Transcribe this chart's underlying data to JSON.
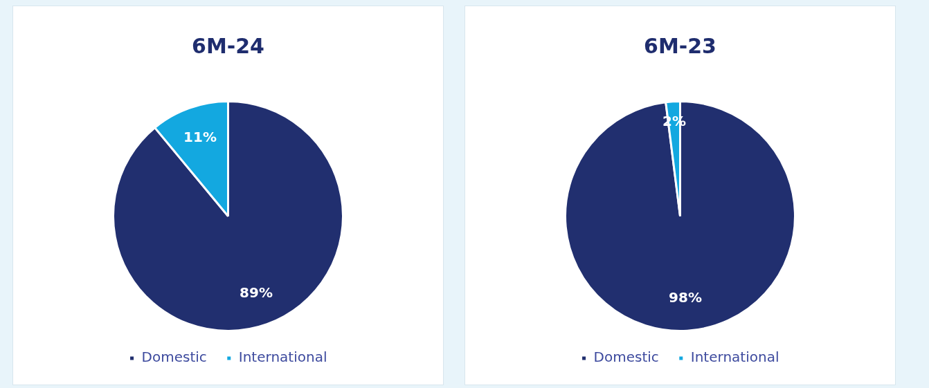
{
  "chart_data": [
    {
      "type": "pie",
      "title": "6M-24",
      "categories": [
        "Domestic",
        "International"
      ],
      "values": [
        89,
        11
      ],
      "colors": [
        "#212f6f",
        "#13a8e0"
      ],
      "value_labels": [
        "89%",
        "11%"
      ],
      "legend": "bottom"
    },
    {
      "type": "pie",
      "title": "6M-23",
      "categories": [
        "Domestic",
        "International"
      ],
      "values": [
        98,
        2
      ],
      "colors": [
        "#212f6f",
        "#13a8e0"
      ],
      "value_labels": [
        "98%",
        "2%"
      ],
      "legend": "bottom"
    }
  ]
}
